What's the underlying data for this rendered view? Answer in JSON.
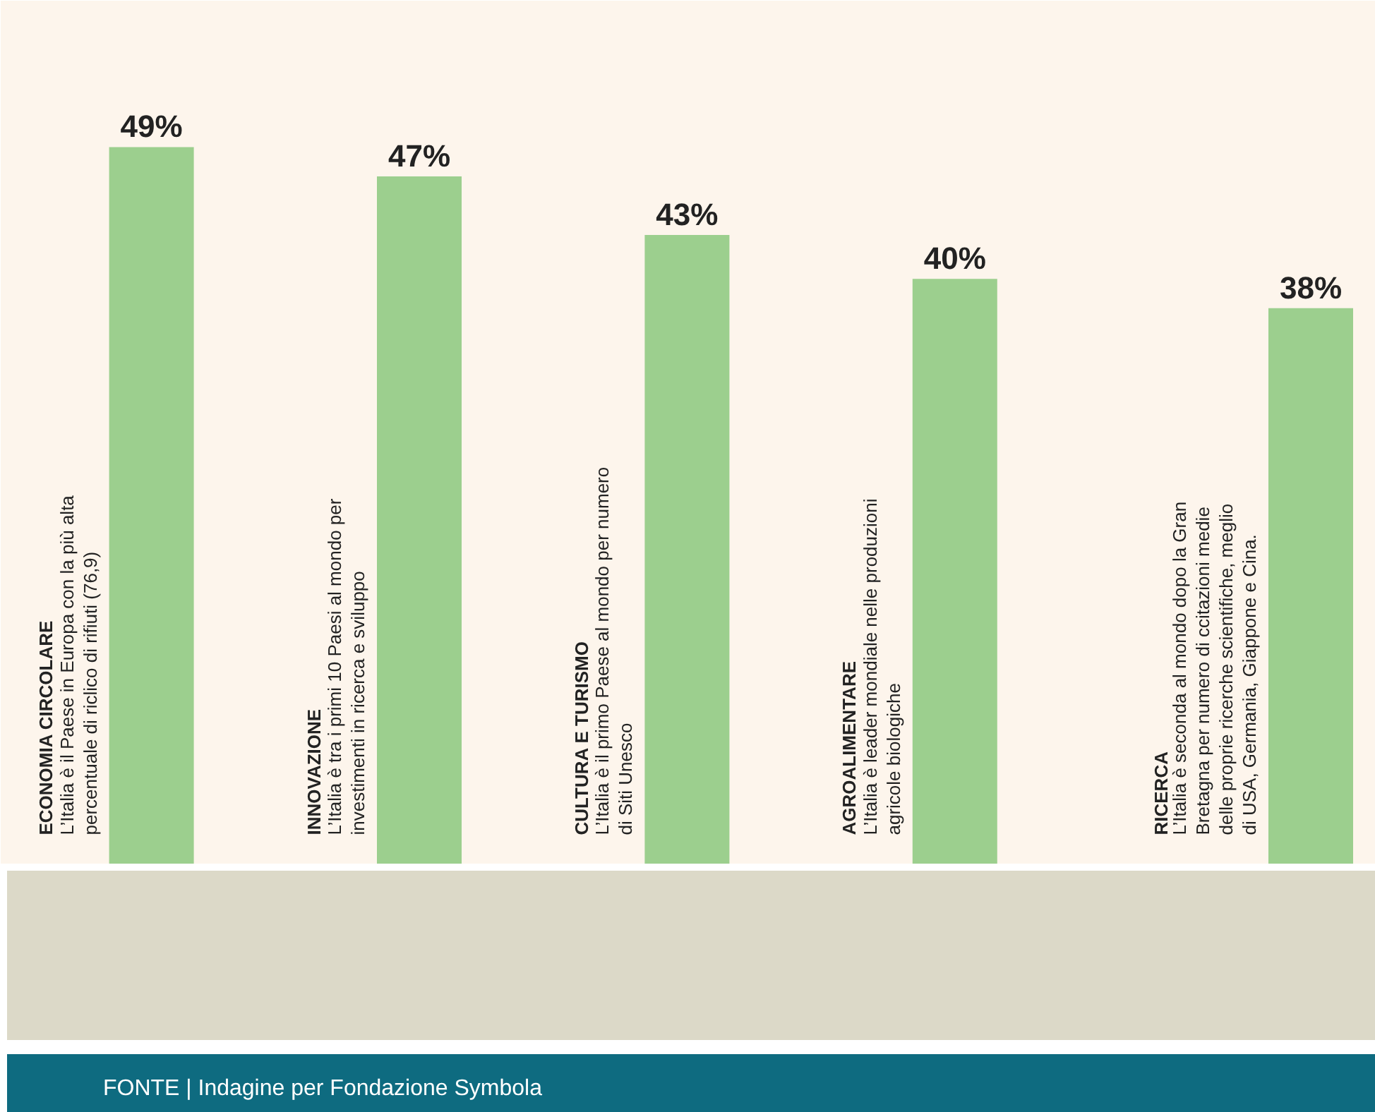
{
  "chart_data": {
    "type": "bar",
    "categories": [
      null,
      null,
      null,
      null,
      null
    ],
    "values": [
      49,
      47,
      43,
      40,
      38
    ],
    "value_labels": [
      "49%",
      "47%",
      "43%",
      "40%",
      "38%"
    ],
    "color": "#9ccf8e",
    "ylim": [
      0,
      59
    ],
    "tick_labels": false,
    "annotations": [
      "ECONOMIA CIRCOLARE",
      "INNOVAZIONE",
      "CULTURA E TURISMO",
      "AGROALIMENTARE",
      "RICERCA",
      "L’Italia è il Paese in Europa con la più alta\npercentuale di riclico di rifiuti (76,9)",
      "L’Italia è tra i primi 10 Paesi al mondo per\ninvestimenti in ricerca e sviluppo",
      "L’Italia è il primo Paese al mondo per numero\ndi Siti Unesco",
      "L’Italia è leader mondiale nelle produzioni\nagricole biologiche",
      "L’Italia è seconda al mondo dopo la Gran\nBretagna per numero di ccitazioni medie\ndelle proprie ricerche scientifiche, meglio\ndi USA, Germania, Giappone e Cina.",
      "FONTE | Indagine per Fondazione Symbola"
    ]
  }
}
